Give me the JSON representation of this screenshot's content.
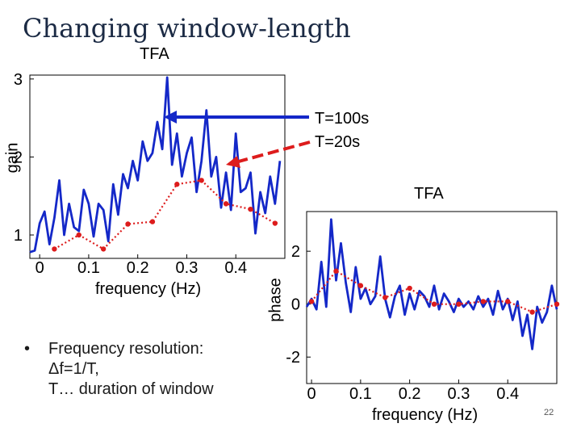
{
  "slide": {
    "title": "Changing window-length",
    "page_number": "22"
  },
  "bullet": {
    "marker": "•",
    "lines": [
      "Frequency resolution:",
      "Δf=1/T,",
      "T… duration of window"
    ]
  },
  "legend": {
    "t100": "T=100s",
    "t20": "T=20s",
    "t100_color": "#1428c8",
    "t20_color": "#dd1c1c"
  },
  "chart_data": [
    {
      "type": "line",
      "title": "TFA",
      "xlabel": "frequency (Hz)",
      "ylabel": "gain",
      "xlim": [
        -0.02,
        0.5
      ],
      "ylim": [
        0.7,
        3.05
      ],
      "x_ticks": [
        0,
        0.1,
        0.2,
        0.3,
        0.4
      ],
      "x_tick_labels": [
        "0",
        "0.1",
        "0.2",
        "0.3",
        "0.4"
      ],
      "y_ticks": [
        1,
        2,
        3
      ],
      "y_tick_labels": [
        "1",
        "2",
        "3"
      ],
      "series": [
        {
          "name": "T=100s",
          "color": "#1428c8",
          "style": "solid",
          "x": [
            -0.02,
            -0.01,
            0,
            0.01,
            0.02,
            0.03,
            0.04,
            0.05,
            0.06,
            0.07,
            0.08,
            0.09,
            0.1,
            0.11,
            0.12,
            0.13,
            0.14,
            0.15,
            0.16,
            0.17,
            0.18,
            0.19,
            0.2,
            0.21,
            0.22,
            0.23,
            0.24,
            0.25,
            0.26,
            0.27,
            0.28,
            0.29,
            0.3,
            0.31,
            0.32,
            0.33,
            0.34,
            0.35,
            0.36,
            0.37,
            0.38,
            0.39,
            0.4,
            0.41,
            0.42,
            0.43,
            0.44,
            0.45,
            0.46,
            0.47,
            0.48,
            0.49
          ],
          "y": [
            0.78,
            0.8,
            1.15,
            1.3,
            0.88,
            1.22,
            1.7,
            1.0,
            1.4,
            1.1,
            1.05,
            1.58,
            1.4,
            0.98,
            1.4,
            1.32,
            0.92,
            1.65,
            1.26,
            1.78,
            1.6,
            1.95,
            1.7,
            2.2,
            1.95,
            2.05,
            2.45,
            2.1,
            3.02,
            1.9,
            2.3,
            1.75,
            2.05,
            2.25,
            1.55,
            1.95,
            2.6,
            1.75,
            2.0,
            1.35,
            1.8,
            1.32,
            2.3,
            1.55,
            1.6,
            1.8,
            1.02,
            1.55,
            1.28,
            1.75,
            1.4,
            1.95
          ]
        },
        {
          "name": "T=20s",
          "color": "#dd1c1c",
          "style": "dotted-markers",
          "x": [
            0.03,
            0.08,
            0.13,
            0.18,
            0.23,
            0.28,
            0.33,
            0.38,
            0.43,
            0.48
          ],
          "y": [
            0.82,
            1.0,
            0.82,
            1.14,
            1.17,
            1.65,
            1.7,
            1.4,
            1.33,
            1.15
          ]
        }
      ]
    },
    {
      "type": "line",
      "title": "TFA",
      "xlabel": "frequency (Hz)",
      "ylabel": "phase",
      "xlim": [
        -0.01,
        0.5
      ],
      "ylim": [
        -3.0,
        3.5
      ],
      "x_ticks": [
        0,
        0.1,
        0.2,
        0.3,
        0.4
      ],
      "x_tick_labels": [
        "0",
        "0.1",
        "0.2",
        "0.3",
        "0.4"
      ],
      "y_ticks": [
        -2,
        0,
        2
      ],
      "y_tick_labels": [
        "-2",
        "0",
        "2"
      ],
      "series": [
        {
          "name": "T=100s",
          "color": "#1428c8",
          "style": "solid",
          "x": [
            -0.01,
            0,
            0.01,
            0.02,
            0.03,
            0.04,
            0.05,
            0.06,
            0.07,
            0.08,
            0.09,
            0.1,
            0.11,
            0.12,
            0.13,
            0.14,
            0.15,
            0.16,
            0.17,
            0.18,
            0.19,
            0.2,
            0.21,
            0.22,
            0.23,
            0.24,
            0.25,
            0.26,
            0.27,
            0.28,
            0.29,
            0.3,
            0.31,
            0.32,
            0.33,
            0.34,
            0.35,
            0.36,
            0.37,
            0.38,
            0.39,
            0.4,
            0.41,
            0.42,
            0.43,
            0.44,
            0.45,
            0.46,
            0.47,
            0.48,
            0.49,
            0.5
          ],
          "y": [
            -0.1,
            0.2,
            -0.2,
            1.6,
            -0.1,
            3.2,
            0.9,
            2.3,
            0.8,
            -0.3,
            1.4,
            0.2,
            0.6,
            0.0,
            0.3,
            1.8,
            0.2,
            -0.5,
            0.3,
            0.7,
            -0.4,
            0.4,
            -0.2,
            0.5,
            0.3,
            -0.1,
            0.7,
            -0.2,
            0.4,
            0.1,
            -0.3,
            0.2,
            -0.1,
            0.1,
            -0.2,
            0.3,
            -0.1,
            0.2,
            -0.4,
            0.5,
            -0.2,
            0.2,
            -0.6,
            0.1,
            -1.2,
            -0.4,
            -1.7,
            -0.1,
            -0.7,
            -0.3,
            0.7,
            -0.2
          ]
        },
        {
          "name": "T=20s",
          "color": "#dd1c1c",
          "style": "dotted-markers",
          "x": [
            0,
            0.05,
            0.1,
            0.15,
            0.2,
            0.25,
            0.3,
            0.35,
            0.4,
            0.45,
            0.5
          ],
          "y": [
            0.1,
            1.25,
            0.7,
            0.25,
            0.6,
            0.0,
            0.0,
            0.1,
            0.1,
            -0.3,
            0.0
          ]
        }
      ]
    }
  ]
}
